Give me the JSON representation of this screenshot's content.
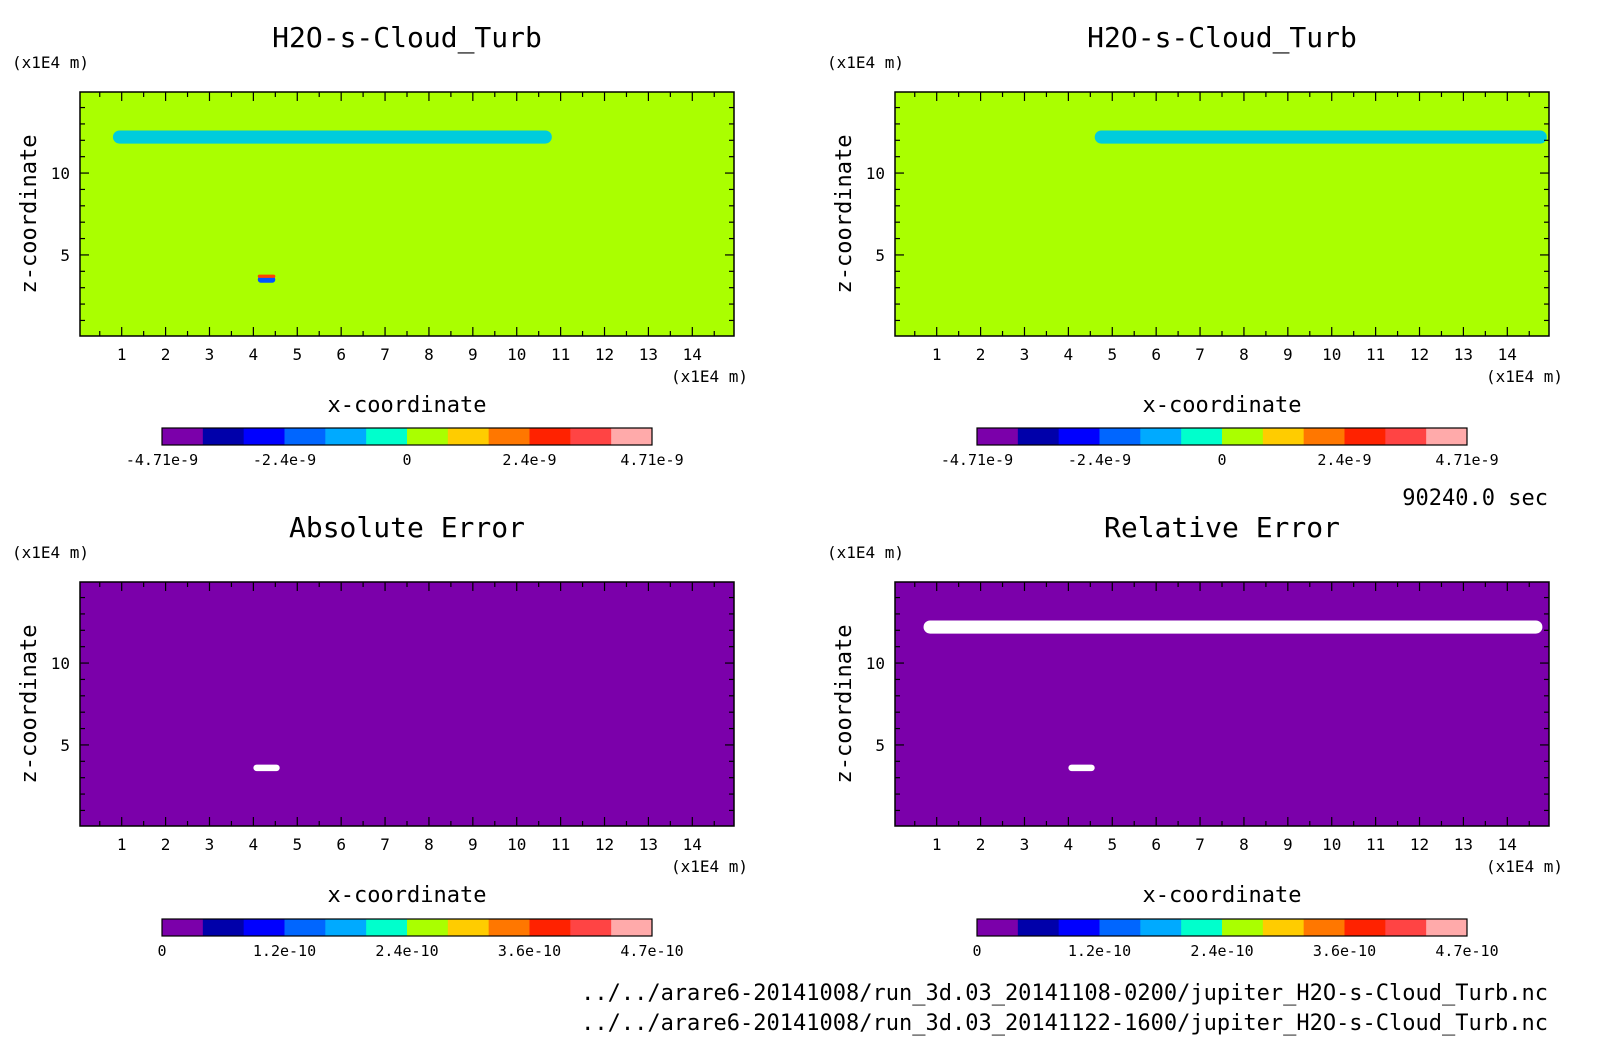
{
  "chart_data": [
    {
      "type": "heatmap",
      "title": "H2O-s-Cloud_Turb",
      "xlabel": "x-coordinate",
      "ylabel": "z-coordinate",
      "x_unit": "(x1E4 m)",
      "y_unit": "(x1E4 m)",
      "xlim": [
        0.05,
        14.95
      ],
      "ylim": [
        0.05,
        14.95
      ],
      "x_ticks": [
        "1",
        "2",
        "3",
        "4",
        "5",
        "6",
        "7",
        "8",
        "9",
        "10",
        "11",
        "12",
        "13",
        "14"
      ],
      "y_ticks": [
        "5",
        "10"
      ],
      "background_color": "#aaff00",
      "colorbar": {
        "colors": [
          "#7b00aa",
          "#0000aa",
          "#0000ff",
          "#0066ff",
          "#00aaff",
          "#00ffcc",
          "#aaff00",
          "#ffcc00",
          "#ff7700",
          "#ff2200",
          "#ff4444",
          "#ffaaaa"
        ],
        "ticks": [
          "-4.71e-9",
          "-2.4e-9",
          "0",
          "2.4e-9",
          "4.71e-9"
        ]
      },
      "features": [
        {
          "x": [
            0.8,
            10.8
          ],
          "z": [
            11.8,
            12.6
          ],
          "color": "#00ccdd"
        },
        {
          "x": [
            4.1,
            4.5
          ],
          "z": [
            3.3,
            3.7
          ],
          "color": "#0055ff"
        },
        {
          "x": [
            4.1,
            4.5
          ],
          "z": [
            3.6,
            3.8
          ],
          "color": "#ff4400"
        }
      ]
    },
    {
      "type": "heatmap",
      "title": "H2O-s-Cloud_Turb",
      "xlabel": "x-coordinate",
      "ylabel": "z-coordinate",
      "x_unit": "(x1E4 m)",
      "y_unit": "(x1E4 m)",
      "xlim": [
        0.05,
        14.95
      ],
      "ylim": [
        0.05,
        14.95
      ],
      "x_ticks": [
        "1",
        "2",
        "3",
        "4",
        "5",
        "6",
        "7",
        "8",
        "9",
        "10",
        "11",
        "12",
        "13",
        "14"
      ],
      "y_ticks": [
        "5",
        "10"
      ],
      "background_color": "#aaff00",
      "colorbar": {
        "colors": [
          "#7b00aa",
          "#0000aa",
          "#0000ff",
          "#0066ff",
          "#00aaff",
          "#00ffcc",
          "#aaff00",
          "#ffcc00",
          "#ff7700",
          "#ff2200",
          "#ff4444",
          "#ffaaaa"
        ],
        "ticks": [
          "-4.71e-9",
          "-2.4e-9",
          "0",
          "2.4e-9",
          "4.71e-9"
        ]
      },
      "features": [
        {
          "x": [
            4.6,
            14.9
          ],
          "z": [
            11.8,
            12.6
          ],
          "color": "#00ccdd"
        }
      ]
    },
    {
      "type": "heatmap",
      "title": "Absolute Error",
      "xlabel": "x-coordinate",
      "ylabel": "z-coordinate",
      "x_unit": "(x1E4 m)",
      "y_unit": "(x1E4 m)",
      "xlim": [
        0.05,
        14.95
      ],
      "ylim": [
        0.05,
        14.95
      ],
      "x_ticks": [
        "1",
        "2",
        "3",
        "4",
        "5",
        "6",
        "7",
        "8",
        "9",
        "10",
        "11",
        "12",
        "13",
        "14"
      ],
      "y_ticks": [
        "5",
        "10"
      ],
      "background_color": "#7b00aa",
      "colorbar": {
        "colors": [
          "#7b00aa",
          "#0000aa",
          "#0000ff",
          "#0066ff",
          "#00aaff",
          "#00ffcc",
          "#aaff00",
          "#ffcc00",
          "#ff7700",
          "#ff2200",
          "#ff4444",
          "#ffaaaa"
        ],
        "ticks": [
          "0",
          "1.2e-10",
          "2.4e-10",
          "3.6e-10",
          "4.7e-10"
        ]
      },
      "features": [
        {
          "x": [
            4.0,
            4.6
          ],
          "z": [
            3.4,
            3.8
          ],
          "color": "#ffffff"
        }
      ]
    },
    {
      "type": "heatmap",
      "title": "Relative Error",
      "xlabel": "x-coordinate",
      "ylabel": "z-coordinate",
      "x_unit": "(x1E4 m)",
      "y_unit": "(x1E4 m)",
      "xlim": [
        0.05,
        14.95
      ],
      "ylim": [
        0.05,
        14.95
      ],
      "x_ticks": [
        "1",
        "2",
        "3",
        "4",
        "5",
        "6",
        "7",
        "8",
        "9",
        "10",
        "11",
        "12",
        "13",
        "14"
      ],
      "y_ticks": [
        "5",
        "10"
      ],
      "background_color": "#7b00aa",
      "colorbar": {
        "colors": [
          "#7b00aa",
          "#0000aa",
          "#0000ff",
          "#0066ff",
          "#00aaff",
          "#00ffcc",
          "#aaff00",
          "#ffcc00",
          "#ff7700",
          "#ff2200",
          "#ff4444",
          "#ffaaaa"
        ],
        "ticks": [
          "0",
          "1.2e-10",
          "2.4e-10",
          "3.6e-10",
          "4.7e-10"
        ]
      },
      "features": [
        {
          "x": [
            0.7,
            14.8
          ],
          "z": [
            11.8,
            12.6
          ],
          "color": "#ffffff"
        },
        {
          "x": [
            4.0,
            4.6
          ],
          "z": [
            3.4,
            3.8
          ],
          "color": "#ffffff"
        }
      ]
    }
  ],
  "time_label": "90240.0 sec",
  "footer": {
    "line1": "../../arare6-20141008/run_3d.03_20141108-0200/jupiter_H2O-s-Cloud_Turb.nc",
    "line2": "../../arare6-20141008/run_3d.03_20141122-1600/jupiter_H2O-s-Cloud_Turb.nc"
  }
}
